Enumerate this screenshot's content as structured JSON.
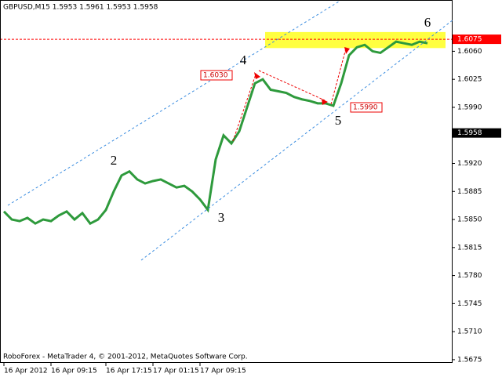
{
  "chart_data": {
    "type": "line",
    "title": "GBPUSD,M15  1.5953 1.5961 1.5953 1.5958",
    "footer": "RoboForex - MetaTrader 4, © 2001-2012, MetaQuotes Software Corp.",
    "categories": [
      "16 Apr 2012",
      null,
      null,
      null,
      null,
      null,
      "16 Apr 09:15",
      null,
      null,
      null,
      null,
      null,
      null,
      "16 Apr 17:15",
      null,
      null,
      null,
      null,
      null,
      "17 Apr 01:15",
      null,
      null,
      null,
      null,
      null,
      "17 Apr 09:15",
      null,
      null,
      null,
      null,
      null,
      null,
      null,
      null,
      null,
      null,
      null,
      null,
      null,
      null,
      null,
      null,
      null,
      null,
      null,
      null,
      null,
      null,
      null,
      null,
      null,
      null,
      null,
      null,
      null
    ],
    "series": [
      {
        "name": "GBPUSD,M15",
        "color": "#2e9a3c",
        "values": [
          1.586,
          1.585,
          1.5848,
          1.5852,
          1.5845,
          1.585,
          1.5848,
          1.5855,
          1.586,
          1.585,
          1.5858,
          1.5845,
          1.585,
          1.5862,
          1.5885,
          1.5905,
          1.591,
          1.59,
          1.5895,
          1.5898,
          1.59,
          1.5895,
          1.589,
          1.5892,
          1.5885,
          1.5875,
          1.5862,
          1.5925,
          1.5955,
          1.5945,
          1.596,
          1.599,
          1.602,
          1.6025,
          1.6012,
          1.601,
          1.6008,
          1.6003,
          1.6,
          1.5998,
          1.5995,
          1.5995,
          1.5992,
          1.602,
          1.6055,
          1.6065,
          1.6068,
          1.606,
          1.6058,
          1.6065,
          1.6072,
          1.607,
          1.6068,
          1.6072,
          1.607
        ]
      }
    ],
    "ylim": [
      1.5671,
      1.6124
    ],
    "yticks": [
      {
        "value": 1.606,
        "label": "1.6060"
      },
      {
        "value": 1.6025,
        "label": "1.6025"
      },
      {
        "value": 1.599,
        "label": "1.5990"
      },
      {
        "value": 1.592,
        "label": "1.5920"
      },
      {
        "value": 1.5885,
        "label": "1.5885"
      },
      {
        "value": 1.585,
        "label": "1.5850"
      },
      {
        "value": 1.5815,
        "label": "1.5815"
      },
      {
        "value": 1.578,
        "label": "1.5780"
      },
      {
        "value": 1.5745,
        "label": "1.5745"
      },
      {
        "value": 1.571,
        "label": "1.5710"
      },
      {
        "value": 1.5675,
        "label": "1.5675"
      }
    ],
    "levels": [
      {
        "value": 1.6075,
        "label": "1.6075",
        "color": "#ff0000"
      },
      {
        "value": 1.5958,
        "label": "1.5958",
        "color": "#000000"
      }
    ],
    "target_zone": [
      1.6064,
      1.6084
    ],
    "wave_labels": [
      "2",
      "3",
      "4",
      "5",
      "6"
    ],
    "price_labels": [
      "1.6030",
      "1.5990"
    ]
  }
}
